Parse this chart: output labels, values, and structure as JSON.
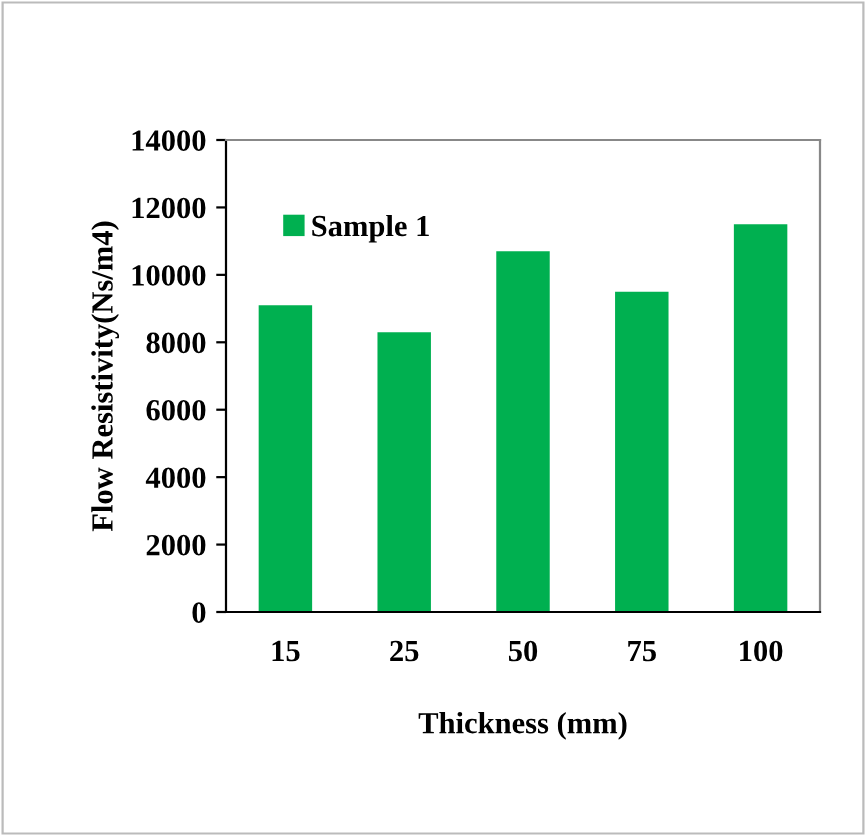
{
  "chart_data": {
    "type": "bar",
    "categories": [
      "15",
      "25",
      "50",
      "75",
      "100"
    ],
    "series": [
      {
        "name": "Sample 1",
        "color": "#00b050",
        "values": [
          9100,
          8300,
          10700,
          9500,
          11500
        ]
      }
    ],
    "xlabel": "Thickness (mm)",
    "ylabel": "Flow Resistivity(Ns/m4)",
    "ylim": [
      0,
      14000
    ],
    "yticks": [
      0,
      2000,
      4000,
      6000,
      8000,
      10000,
      12000,
      14000
    ],
    "grid": false,
    "legend": "top left"
  }
}
